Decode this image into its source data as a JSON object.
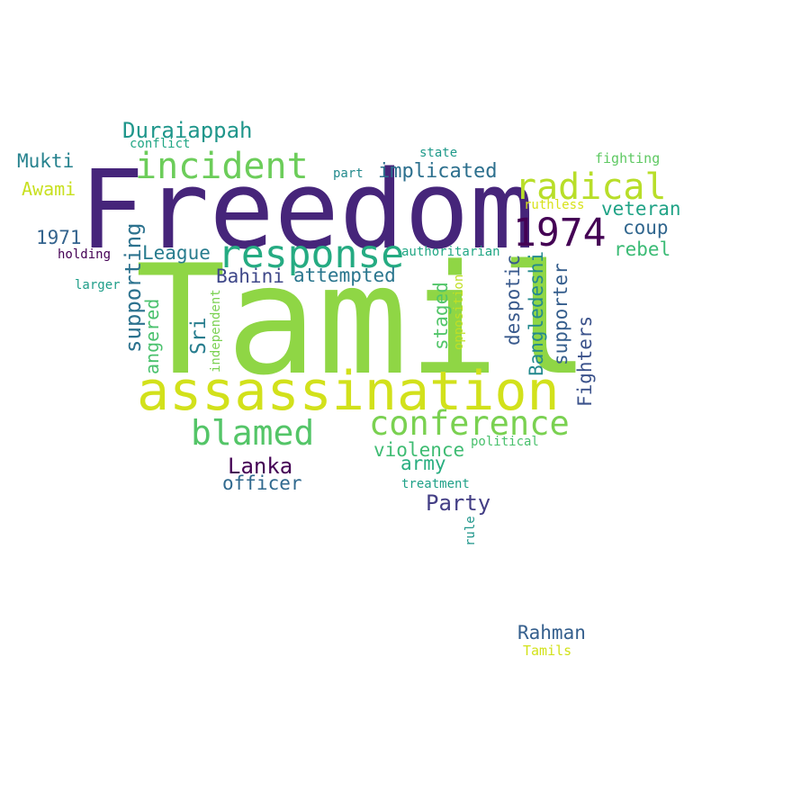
{
  "words": [
    {
      "key": "freedom",
      "text": "Freedom",
      "color": "#46257a"
    },
    {
      "key": "tamil",
      "text": "Tamil",
      "color": "#8fd645"
    },
    {
      "key": "assassination",
      "text": "assassination",
      "color": "#d2e11b"
    },
    {
      "key": "response",
      "text": "response",
      "color": "#25ab82"
    },
    {
      "key": "incident",
      "text": "incident",
      "color": "#6ccd5a"
    },
    {
      "key": "radical",
      "text": "radical",
      "color": "#b8de29"
    },
    {
      "key": "year_1974",
      "text": "1974",
      "color": "#440154"
    },
    {
      "key": "conference",
      "text": "conference",
      "color": "#7ad151"
    },
    {
      "key": "blamed",
      "text": "blamed",
      "color": "#54c568"
    },
    {
      "key": "duraiappah",
      "text": "Duraiappah",
      "color": "#1f968b"
    },
    {
      "key": "implicated",
      "text": "implicated",
      "color": "#2d708e"
    },
    {
      "key": "veteran",
      "text": "veteran",
      "color": "#20a386"
    },
    {
      "key": "coup",
      "text": "coup",
      "color": "#31668e"
    },
    {
      "key": "rebel",
      "text": "rebel",
      "color": "#3bbb75"
    },
    {
      "key": "mukti",
      "text": "Mukti",
      "color": "#26828e"
    },
    {
      "key": "awami",
      "text": "Awami",
      "color": "#c8e020"
    },
    {
      "key": "year_1971",
      "text": "1971",
      "color": "#33638d"
    },
    {
      "key": "league",
      "text": "League",
      "color": "#287c8e"
    },
    {
      "key": "bahini",
      "text": "Bahini",
      "color": "#3f4889"
    },
    {
      "key": "attempted",
      "text": "attempted",
      "color": "#2a768e"
    },
    {
      "key": "lanka",
      "text": "Lanka",
      "color": "#440154"
    },
    {
      "key": "officer",
      "text": "officer",
      "color": "#30698e"
    },
    {
      "key": "violence",
      "text": "violence",
      "color": "#3fbc73"
    },
    {
      "key": "army",
      "text": "army",
      "color": "#28ae80"
    },
    {
      "key": "party",
      "text": "Party",
      "color": "#433e85"
    },
    {
      "key": "rahman",
      "text": "Rahman",
      "color": "#355f8d"
    },
    {
      "key": "tamils",
      "text": "Tamils",
      "color": "#d2e21b"
    },
    {
      "key": "conflict",
      "text": "conflict",
      "color": "#21a685"
    },
    {
      "key": "state",
      "text": "state",
      "color": "#1f9a8a"
    },
    {
      "key": "fighting",
      "text": "fighting",
      "color": "#5ec962"
    },
    {
      "key": "part",
      "text": "part",
      "color": "#238a8d"
    },
    {
      "key": "ruthless",
      "text": "ruthless",
      "color": "#d8e219"
    },
    {
      "key": "holding",
      "text": "holding",
      "color": "#440154"
    },
    {
      "key": "authoritarian",
      "text": "authoritarian",
      "color": "#22a785"
    },
    {
      "key": "larger",
      "text": "larger",
      "color": "#1f9e89"
    },
    {
      "key": "political",
      "text": "political",
      "color": "#4ac16d"
    },
    {
      "key": "treatment",
      "text": "treatment",
      "color": "#1fa188"
    },
    {
      "key": "supporting",
      "text": "supporting",
      "color": "#2c728e"
    },
    {
      "key": "angered",
      "text": "angered",
      "color": "#4ac16d"
    },
    {
      "key": "independent",
      "text": "independent",
      "color": "#7ad151"
    },
    {
      "key": "sri",
      "text": "Sri",
      "color": "#287d8e"
    },
    {
      "key": "staged",
      "text": "staged",
      "color": "#52c569"
    },
    {
      "key": "opposition",
      "text": "opposition",
      "color": "#c0df25"
    },
    {
      "key": "despotic",
      "text": "despotic",
      "color": "#38598c"
    },
    {
      "key": "bangledeshi",
      "text": "Bangledeshi",
      "color": "#23898e"
    },
    {
      "key": "supporter",
      "text": "supporter",
      "color": "#355e8d"
    },
    {
      "key": "fighters",
      "text": "Fighters",
      "color": "#3b528b"
    },
    {
      "key": "rule",
      "text": "rule",
      "color": "#1f968b"
    }
  ]
}
